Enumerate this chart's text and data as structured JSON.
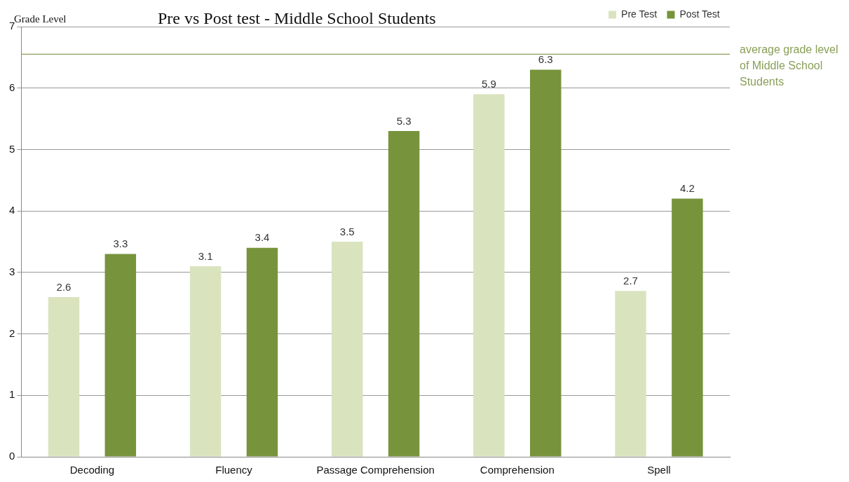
{
  "chart_data": {
    "type": "bar",
    "title": "Pre vs Post test - Middle School Students",
    "ylabel": "Grade Level",
    "categories": [
      "Decoding",
      "Fluency",
      "Passage Comprehension",
      "Comprehension",
      "Spell"
    ],
    "series": [
      {
        "name": "Pre Test",
        "color": "#d9e4bf",
        "values": [
          2.6,
          3.1,
          3.5,
          5.9,
          2.7
        ]
      },
      {
        "name": "Post Test",
        "color": "#77933c",
        "values": [
          3.3,
          3.4,
          5.3,
          6.3,
          4.2
        ]
      }
    ],
    "ylim": [
      0,
      7
    ],
    "yticks": [
      0,
      1,
      2,
      3,
      4,
      5,
      6,
      7
    ],
    "grid": "y",
    "legend": "top right",
    "data_labels": true,
    "ref_lines": [
      {
        "axis": "y",
        "value": 6.55,
        "label": "average grade level of Middle School Students",
        "color": "#8aa05a"
      }
    ]
  }
}
